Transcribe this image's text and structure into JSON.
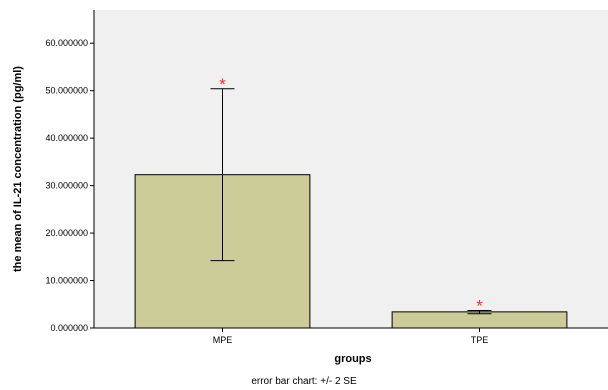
{
  "chart_data": {
    "type": "bar",
    "categories": [
      "MPE",
      "TPE"
    ],
    "values": [
      32.3,
      3.4
    ],
    "error_bars": {
      "lower": [
        14.2,
        3.0
      ],
      "upper": [
        50.4,
        3.7
      ]
    },
    "annotations": [
      "*",
      "*"
    ],
    "xlabel": "groups",
    "ylabel": "the mean of IL-21 concentration (pg/ml)",
    "yticks": [
      "0.000000",
      "10.000000",
      "20.000000",
      "30.000000",
      "40.000000",
      "50.000000",
      "60.000000"
    ],
    "ylim": [
      0,
      67
    ],
    "footnote": "error bar chart: +/- 2 SE",
    "colors": {
      "bar_fill": "#cccc99",
      "bar_stroke": "#000000",
      "plot_background": "#f0f0f0",
      "annotation": "#ff3030"
    },
    "grid": false
  }
}
